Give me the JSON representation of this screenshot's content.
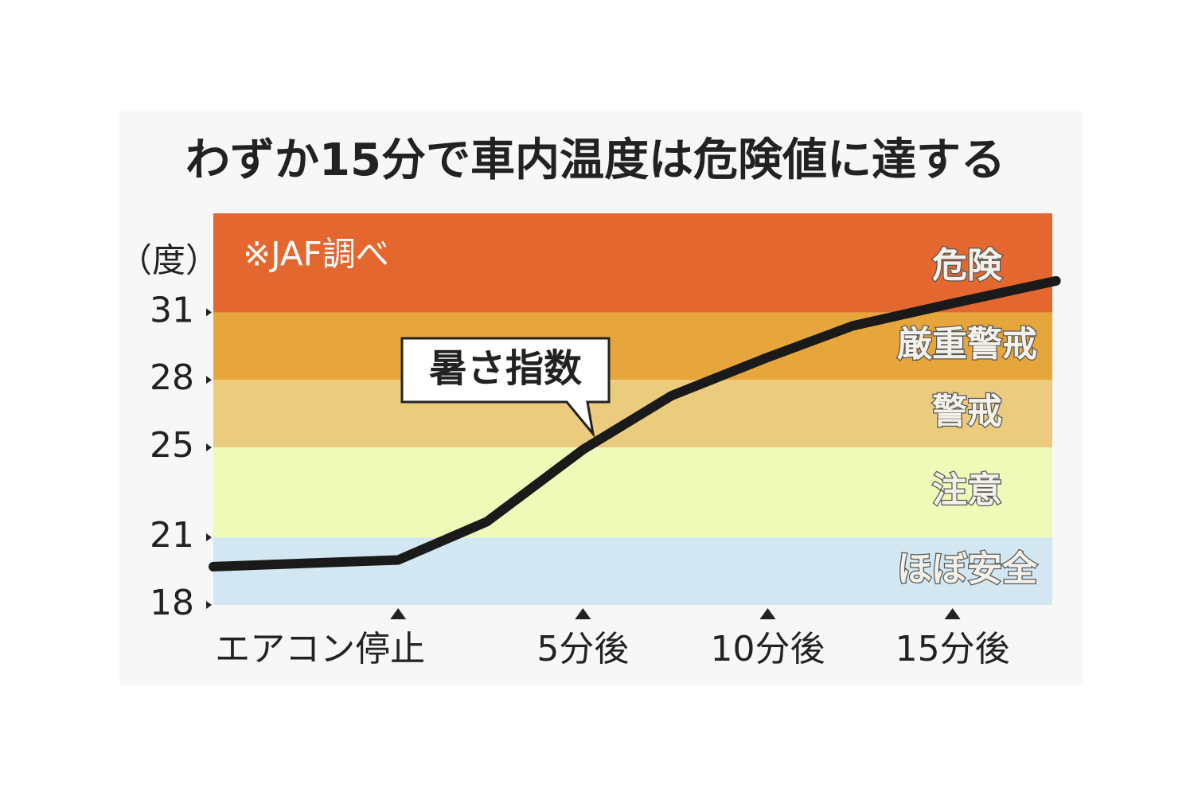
{
  "chart_data": {
    "type": "line",
    "title": "わずか15分で車内温度は危険値に達する",
    "y_label": "（度）",
    "note": "※JAF調べ",
    "x": [
      -5,
      0,
      2.4,
      5,
      7.4,
      10,
      12.3,
      15,
      17.8
    ],
    "series": [
      {
        "name": "暑さ指数",
        "color": "#1a1a1a",
        "values": [
          19.7,
          20.0,
          21.7,
          24.9,
          27.3,
          29.0,
          30.4,
          31.4,
          32.4
        ]
      }
    ],
    "xlim": [
      -5,
      17.7
    ],
    "xticks": [
      {
        "value": 0,
        "label": "エアコン停止"
      },
      {
        "value": 5,
        "label": "5分後"
      },
      {
        "value": 10,
        "label": "10分後"
      },
      {
        "value": 15,
        "label": "15分後"
      }
    ],
    "ylim": [
      18,
      35.4
    ],
    "yticks": [
      18,
      21,
      25,
      28,
      31
    ],
    "bands": [
      {
        "name": "ほぼ安全",
        "from": 18,
        "to": 21,
        "color": "#d2e7f1"
      },
      {
        "name": "注意",
        "from": 21,
        "to": 25,
        "color": "#effab8"
      },
      {
        "name": "警戒",
        "from": 25,
        "to": 28,
        "color": "#ebcb7d"
      },
      {
        "name": "厳重警戒",
        "from": 28,
        "to": 31,
        "color": "#e6a63b"
      },
      {
        "name": "危険",
        "from": 31,
        "to": 35.4,
        "color": "#e4672f"
      }
    ]
  }
}
